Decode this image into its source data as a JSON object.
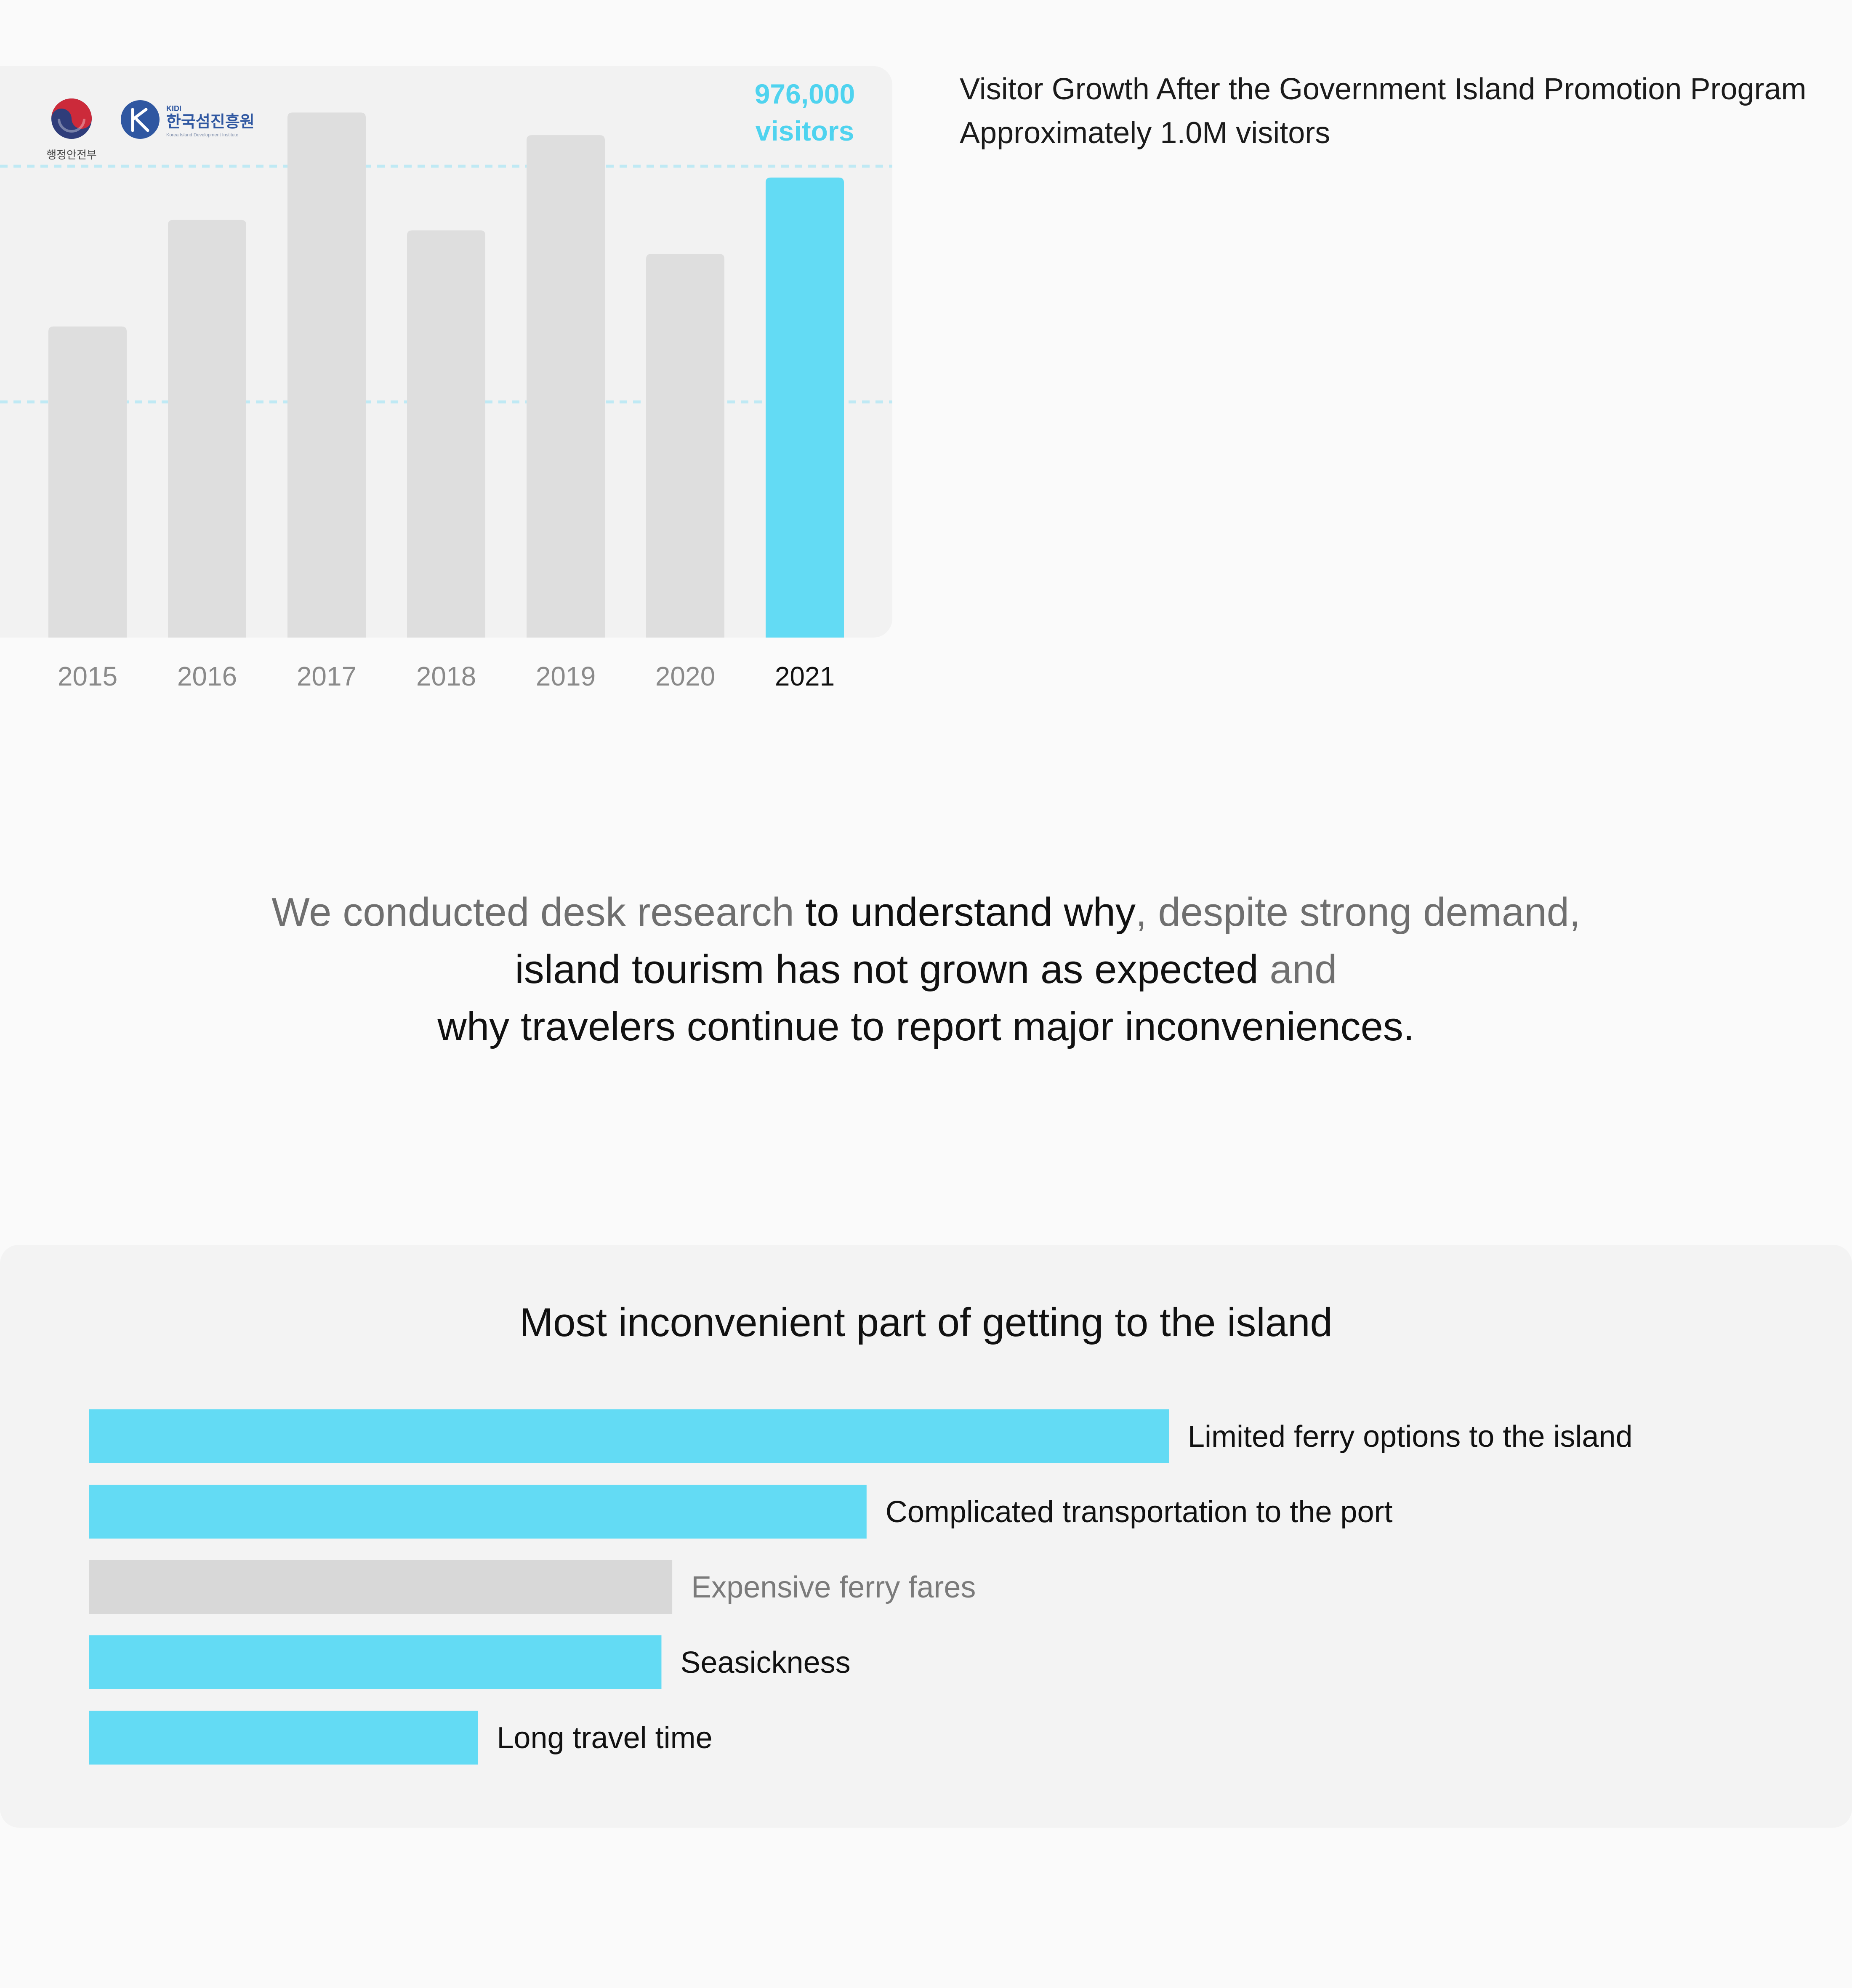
{
  "visitor_chart": {
    "highlight_value": "976,000",
    "highlight_unit": "visitors",
    "logos": {
      "mois_name": "행정안전부",
      "kidi_abbr": "KIDI",
      "kidi_name": "한국섬진흥원",
      "kidi_english": "Korea Island Development Institute"
    },
    "description": {
      "line1": "Visitor Growth After the Government Island Promotion Program",
      "line2": "Approximately 1.0M visitors"
    },
    "colors": {
      "bar": "#dedede",
      "highlight": "#63dbf4",
      "gridline": "#bfe9f4"
    }
  },
  "chart_data": [
    {
      "type": "bar",
      "categories": [
        "2015",
        "2016",
        "2017",
        "2018",
        "2019",
        "2020",
        "2021"
      ],
      "values": [
        660000,
        886000,
        1114000,
        864000,
        1066000,
        814000,
        976000
      ],
      "highlight_index": 6,
      "gridlines": [
        500000,
        1000000
      ],
      "ylim": [
        0,
        1150000
      ],
      "grid": true,
      "legend": "none"
    },
    {
      "type": "bar",
      "orientation": "horizontal",
      "title": "Most inconvenient part of getting to the island",
      "categories": [
        "Limited ferry options to the island",
        "Complicated transportation to the port",
        "Expensive ferry fares",
        "Seasickness",
        "Long travel time"
      ],
      "values": [
        100,
        72,
        54,
        53,
        36
      ],
      "highlight": [
        true,
        true,
        false,
        true,
        true
      ],
      "colors": {
        "highlight": "#63dbf4",
        "muted": "#d8d8d8"
      },
      "grid": false,
      "legend": "none"
    }
  ],
  "quote": {
    "p1": "We conducted desk research ",
    "p2": "to understand why",
    "p3": ", despite strong demand,",
    "p4": "island tourism has not grown as expected",
    "p5": " and",
    "p6": "why travelers continue to report major inconveniences."
  }
}
